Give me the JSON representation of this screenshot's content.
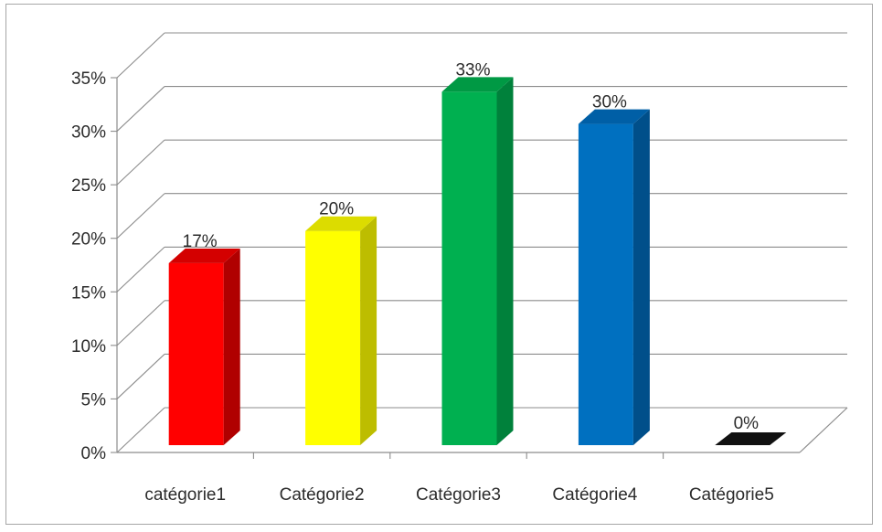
{
  "chart_data": {
    "type": "bar",
    "three_d": true,
    "categories": [
      "catégorie1",
      "Catégorie2",
      "Catégorie3",
      "Catégorie4",
      "Catégorie5"
    ],
    "values": [
      17,
      20,
      33,
      30,
      0
    ],
    "data_labels": [
      "17%",
      "20%",
      "33%",
      "30%",
      "0%"
    ],
    "colors": [
      "#ff0000",
      "#ffff00",
      "#00b050",
      "#0070c0",
      "#000000"
    ],
    "side_colors": [
      "#b00000",
      "#bdbd00",
      "#00813b",
      "#004f8a",
      "#000000"
    ],
    "top_colors": [
      "#d40000",
      "#dcdc00",
      "#009944",
      "#005fa6",
      "#111111"
    ],
    "y_ticks": [
      "0%",
      "5%",
      "10%",
      "15%",
      "20%",
      "25%",
      "30%",
      "35%"
    ],
    "ylim": [
      0,
      35
    ],
    "y_step": 5,
    "grid": true,
    "title": "",
    "xlabel": "",
    "ylabel": "",
    "legend": "none"
  }
}
